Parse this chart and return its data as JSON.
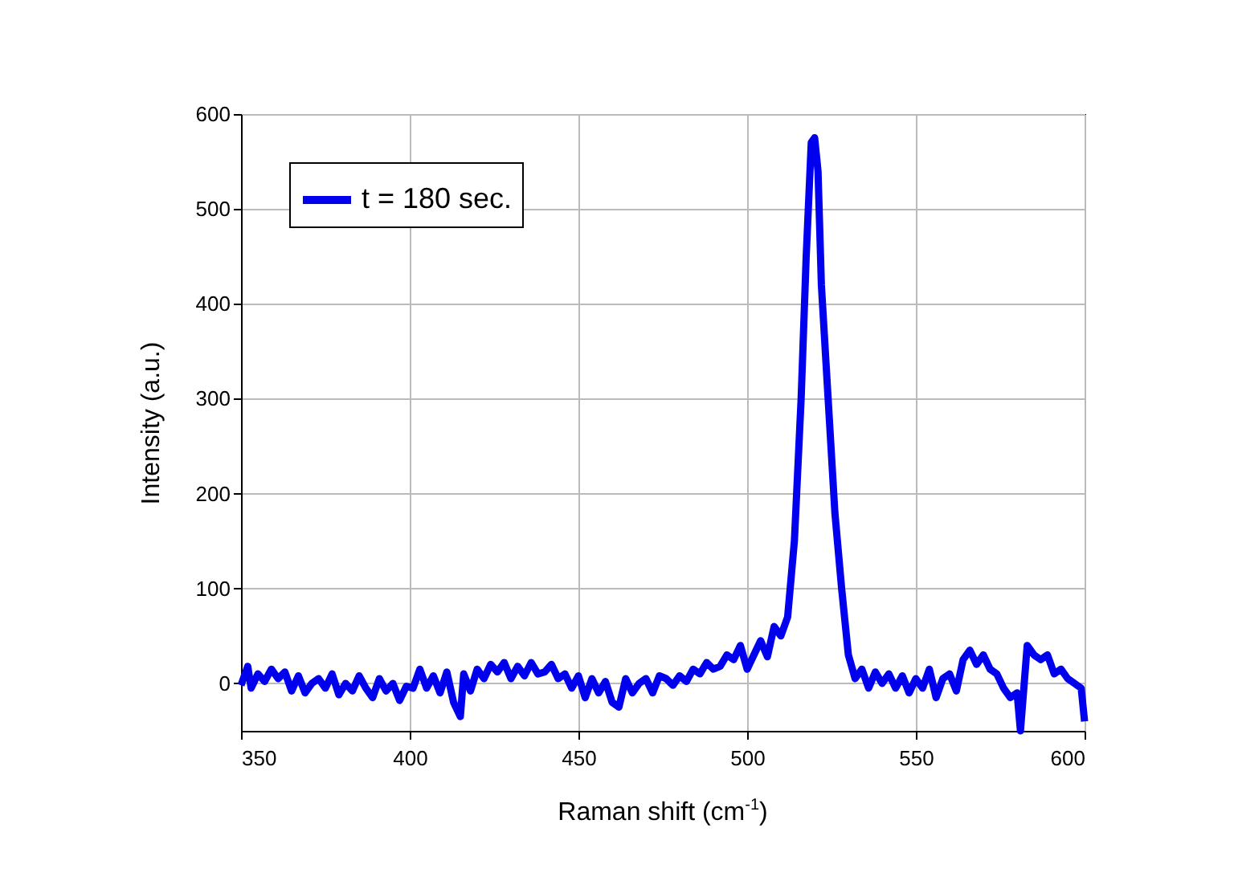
{
  "chart_data": {
    "type": "line",
    "xlabel": "Raman shift (cm$^{-1}$)",
    "ylabel": "Intensity (a.u.)",
    "x": [
      350,
      352,
      353,
      355,
      357,
      359,
      361,
      363,
      365,
      367,
      369,
      371,
      373,
      375,
      377,
      379,
      381,
      383,
      385,
      387,
      389,
      391,
      393,
      395,
      397,
      399,
      401,
      403,
      405,
      407,
      409,
      411,
      413,
      415,
      416,
      418,
      420,
      422,
      424,
      426,
      428,
      430,
      432,
      434,
      436,
      438,
      440,
      442,
      444,
      446,
      448,
      450,
      452,
      454,
      456,
      458,
      460,
      462,
      464,
      466,
      468,
      470,
      472,
      474,
      476,
      478,
      480,
      482,
      484,
      486,
      488,
      490,
      492,
      494,
      496,
      498,
      500,
      502,
      504,
      506,
      508,
      510,
      512,
      514,
      516,
      517.5,
      519,
      520,
      521,
      522,
      524,
      526,
      528,
      530,
      532,
      534,
      536,
      538,
      540,
      542,
      544,
      546,
      548,
      550,
      552,
      554,
      556,
      558,
      560,
      562,
      564,
      566,
      568,
      570,
      572,
      574,
      576,
      578,
      580,
      581,
      583,
      585,
      587,
      589,
      591,
      593,
      595,
      597,
      599,
      600
    ],
    "series": [
      {
        "name": "t = 180 sec.",
        "color": "#0000ee",
        "values": [
          -2,
          18,
          -5,
          10,
          2,
          15,
          5,
          12,
          -8,
          8,
          -10,
          0,
          5,
          -5,
          10,
          -12,
          0,
          -8,
          8,
          -5,
          -15,
          5,
          -8,
          0,
          -18,
          -3,
          -5,
          15,
          -5,
          8,
          -10,
          12,
          -20,
          -35,
          10,
          -8,
          15,
          5,
          20,
          12,
          22,
          5,
          18,
          8,
          22,
          10,
          12,
          20,
          5,
          10,
          -5,
          8,
          -15,
          5,
          -10,
          2,
          -20,
          -25,
          5,
          -10,
          0,
          5,
          -10,
          8,
          5,
          -2,
          8,
          2,
          15,
          10,
          22,
          15,
          18,
          30,
          25,
          40,
          15,
          30,
          45,
          28,
          60,
          50,
          70,
          150,
          300,
          450,
          570,
          575,
          540,
          420,
          300,
          180,
          100,
          30,
          5,
          15,
          -5,
          12,
          0,
          10,
          -5,
          8,
          -10,
          5,
          -5,
          15,
          -15,
          5,
          10,
          -8,
          25,
          35,
          20,
          30,
          15,
          10,
          -5,
          -15,
          -10,
          -50,
          40,
          30,
          25,
          30,
          10,
          15,
          5,
          0,
          -5,
          -40
        ]
      }
    ],
    "xlim": [
      350,
      600
    ],
    "xticks": [
      350,
      400,
      450,
      500,
      550,
      600
    ],
    "ylim": [
      -50,
      600
    ],
    "yticks": [
      0,
      100,
      200,
      300,
      400,
      500,
      600
    ],
    "grid": true,
    "legend": "top left"
  }
}
